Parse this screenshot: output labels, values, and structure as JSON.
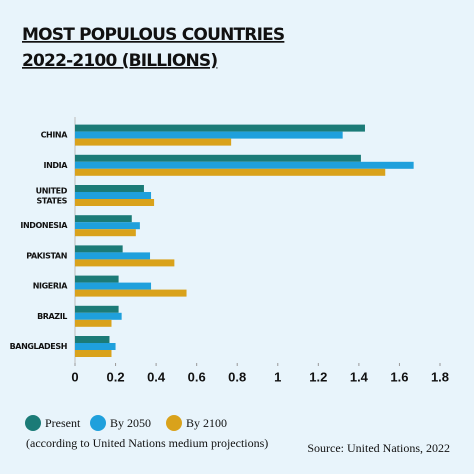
{
  "chart_data": {
    "type": "hbar",
    "title": "MOST POPULOUS COUNTRIES",
    "subtitle": "2022-2100 (BILLIONS)",
    "categories": [
      "CHINA",
      "INDIA",
      "UNITED STATES",
      "INDONESIA",
      "PAKISTAN",
      "NIGERIA",
      "BRAZIL",
      "BANGLADESH"
    ],
    "series": [
      {
        "name": "Present",
        "color": "#1b7b77",
        "values": [
          1.43,
          1.41,
          0.34,
          0.28,
          0.235,
          0.215,
          0.215,
          0.17
        ]
      },
      {
        "name": "By 2050",
        "color": "#1fa0dc",
        "values": [
          1.32,
          1.67,
          0.375,
          0.32,
          0.37,
          0.375,
          0.23,
          0.2
        ]
      },
      {
        "name": "By 2100",
        "color": "#d9a21b",
        "values": [
          0.77,
          1.53,
          0.39,
          0.3,
          0.49,
          0.55,
          0.18,
          0.18
        ]
      }
    ],
    "xlim": [
      0,
      1.8
    ],
    "xticks": [
      0,
      0.2,
      0.4,
      0.6,
      0.8,
      1,
      1.2,
      1.4,
      1.6,
      1.8
    ],
    "note": "(according to United Nations medium projections)",
    "source": "Source: United Nations, 2022"
  }
}
